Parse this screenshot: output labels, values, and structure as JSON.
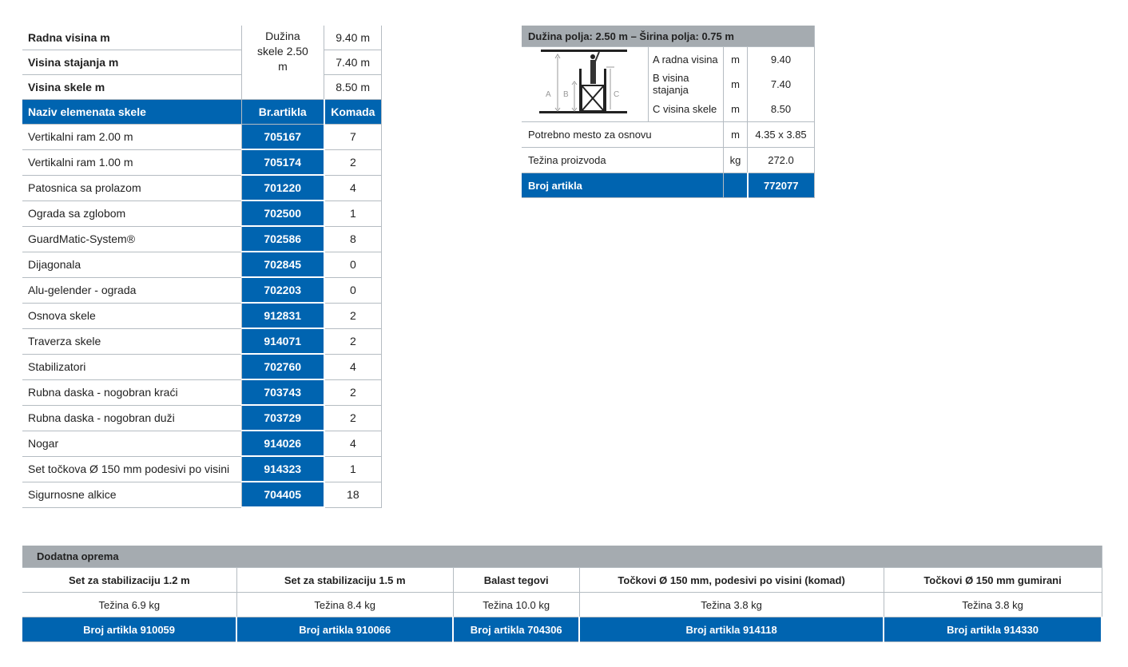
{
  "left": {
    "spec_rows": [
      {
        "label": "Radna visina m",
        "value": "9.40 m"
      },
      {
        "label": "Visina stajanja m",
        "value": "7.40 m"
      },
      {
        "label": "Visina skele m",
        "value": "8.50 m"
      }
    ],
    "duzina": "Dužina skele 2.50 m",
    "headers": {
      "name": "Naziv elemenata skele",
      "article": "Br.artikla",
      "qty": "Komada"
    },
    "rows": [
      {
        "name": "Vertikalni ram 2.00 m",
        "article": "705167",
        "qty": "7"
      },
      {
        "name": "Vertikalni ram 1.00 m",
        "article": "705174",
        "qty": "2"
      },
      {
        "name": "Patosnica sa prolazom",
        "article": "701220",
        "qty": "4"
      },
      {
        "name": "Ograda sa zglobom",
        "article": "702500",
        "qty": "1"
      },
      {
        "name": "GuardMatic-System®",
        "article": "702586",
        "qty": "8"
      },
      {
        "name": "Dijagonala",
        "article": "702845",
        "qty": "0"
      },
      {
        "name": "Alu-gelender - ograda",
        "article": "702203",
        "qty": "0"
      },
      {
        "name": "Osnova skele",
        "article": "912831",
        "qty": "2"
      },
      {
        "name": "Traverza skele",
        "article": "914071",
        "qty": "2"
      },
      {
        "name": "Stabilizatori",
        "article": "702760",
        "qty": "4"
      },
      {
        "name": "Rubna daska - nogobran kraći",
        "article": "703743",
        "qty": "2"
      },
      {
        "name": "Rubna daska - nogobran duži",
        "article": "703729",
        "qty": "2"
      },
      {
        "name": "Nogar",
        "article": "914026",
        "qty": "4"
      },
      {
        "name": "Set točkova Ø 150 mm podesivi po visini",
        "article": "914323",
        "qty": "1"
      },
      {
        "name": "Sigurnosne alkice",
        "article": "704405",
        "qty": "18"
      }
    ]
  },
  "right": {
    "title": "Dužina polja: 2.50 m – Širina polja: 0.75 m",
    "diagram_labels": {
      "a": "A",
      "b": "B",
      "c": "C"
    },
    "dims": [
      {
        "label": "A radna visina",
        "unit": "m",
        "value": "9.40"
      },
      {
        "label": "B visina stajanja",
        "unit": "m",
        "value": "7.40"
      },
      {
        "label": "C visina skele",
        "unit": "m",
        "value": "8.50"
      }
    ],
    "base": {
      "label": "Potrebno mesto za osnovu",
      "unit": "m",
      "value": "4.35 x 3.85"
    },
    "weight": {
      "label": "Težina proizvoda",
      "unit": "kg",
      "value": "272.0"
    },
    "article": {
      "label": "Broj artikla",
      "value": "772077"
    }
  },
  "bottom": {
    "title": "Dodatna oprema",
    "items": [
      {
        "name": "Set za stabilizaciju 1.2 m",
        "weight": "Težina 6.9 kg",
        "article": "Broj artikla 910059"
      },
      {
        "name": "Set za stabilizaciju 1.5 m",
        "weight": "Težina 8.4 kg",
        "article": "Broj artikla 910066"
      },
      {
        "name": "Balast tegovi",
        "weight": "Težina 10.0 kg",
        "article": "Broj artikla 704306"
      },
      {
        "name": "Točkovi Ø 150 mm, podesivi po visini (komad)",
        "weight": "Težina 3.8 kg",
        "article": "Broj artikla 914118"
      },
      {
        "name": "Točkovi Ø 150 mm gumirani",
        "weight": "Težina 3.8 kg",
        "article": "Broj artikla 914330"
      }
    ]
  },
  "colors": {
    "blue": "#0064b0",
    "gray": "#a5abb0"
  }
}
